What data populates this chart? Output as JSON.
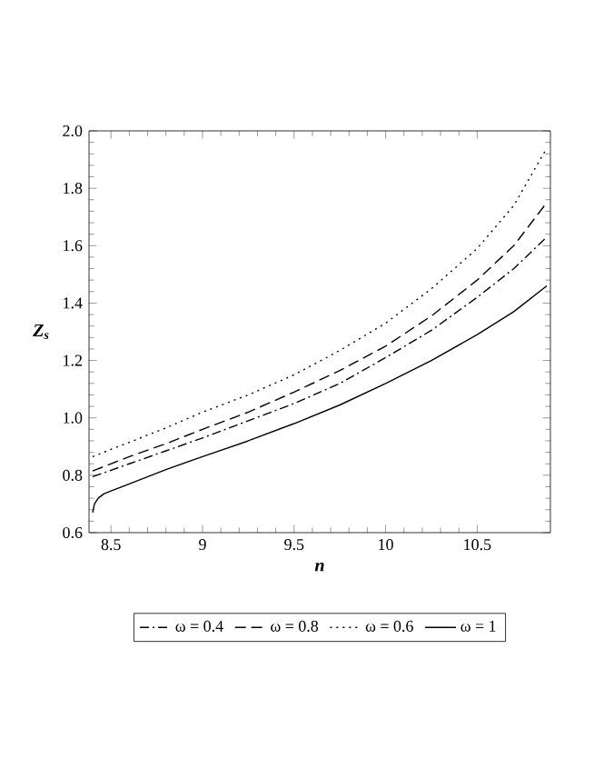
{
  "chart_data": {
    "type": "line",
    "xlabel": "n",
    "ylabel": "Z$_{s}$",
    "xlim": [
      8.38,
      10.9
    ],
    "ylim": [
      0.6,
      2.0
    ],
    "xticks": [
      8.5,
      9,
      9.5,
      10,
      10.5
    ],
    "yticks": [
      {
        "value": 0.6,
        "label": "0.6"
      },
      {
        "value": 0.8,
        "label": "0.8"
      },
      {
        "value": 1.0,
        "label": "1.0"
      },
      {
        "value": 1.2,
        "label": "1.2"
      },
      {
        "value": 1.4,
        "label": "1.4"
      },
      {
        "value": 1.6,
        "label": "1.6"
      },
      {
        "value": 1.8,
        "label": "1.8"
      },
      {
        "value": 2.0,
        "label": "2.0"
      }
    ],
    "legend": "bottom",
    "grid": false,
    "series": [
      {
        "name": "ω = 0.4",
        "color": "#000000",
        "line_style": "dashdot",
        "x": [
          8.4,
          8.6,
          8.8,
          9,
          9.25,
          9.5,
          9.75,
          10,
          10.25,
          10.5,
          10.7,
          10.88
        ],
        "values": [
          0.795,
          0.84,
          0.885,
          0.93,
          0.99,
          1.05,
          1.12,
          1.21,
          1.305,
          1.42,
          1.52,
          1.63
        ]
      },
      {
        "name": "ω = 0.8",
        "color": "#000000",
        "line_style": "dashed",
        "x": [
          8.4,
          8.6,
          8.8,
          9,
          9.25,
          9.5,
          9.75,
          10,
          10.25,
          10.5,
          10.7,
          10.88
        ],
        "values": [
          0.815,
          0.865,
          0.91,
          0.96,
          1.02,
          1.09,
          1.165,
          1.25,
          1.355,
          1.48,
          1.6,
          1.75
        ]
      },
      {
        "name": "ω = 0.6",
        "color": "#000000",
        "line_style": "dotted",
        "x": [
          8.4,
          8.6,
          8.8,
          9,
          9.25,
          9.5,
          9.75,
          10,
          10.25,
          10.5,
          10.7,
          10.88
        ],
        "values": [
          0.865,
          0.915,
          0.965,
          1.02,
          1.08,
          1.15,
          1.235,
          1.33,
          1.45,
          1.59,
          1.74,
          1.94
        ]
      },
      {
        "name": "ω = 1",
        "color": "#000000",
        "line_style": "solid",
        "x": [
          8.4,
          8.41,
          8.43,
          8.46,
          8.5,
          8.6,
          8.8,
          9,
          9.25,
          9.5,
          9.75,
          10,
          10.25,
          10.5,
          10.7,
          10.88
        ],
        "values": [
          0.67,
          0.7,
          0.72,
          0.735,
          0.745,
          0.77,
          0.82,
          0.865,
          0.92,
          0.98,
          1.045,
          1.12,
          1.2,
          1.29,
          1.37,
          1.46
        ]
      }
    ]
  }
}
